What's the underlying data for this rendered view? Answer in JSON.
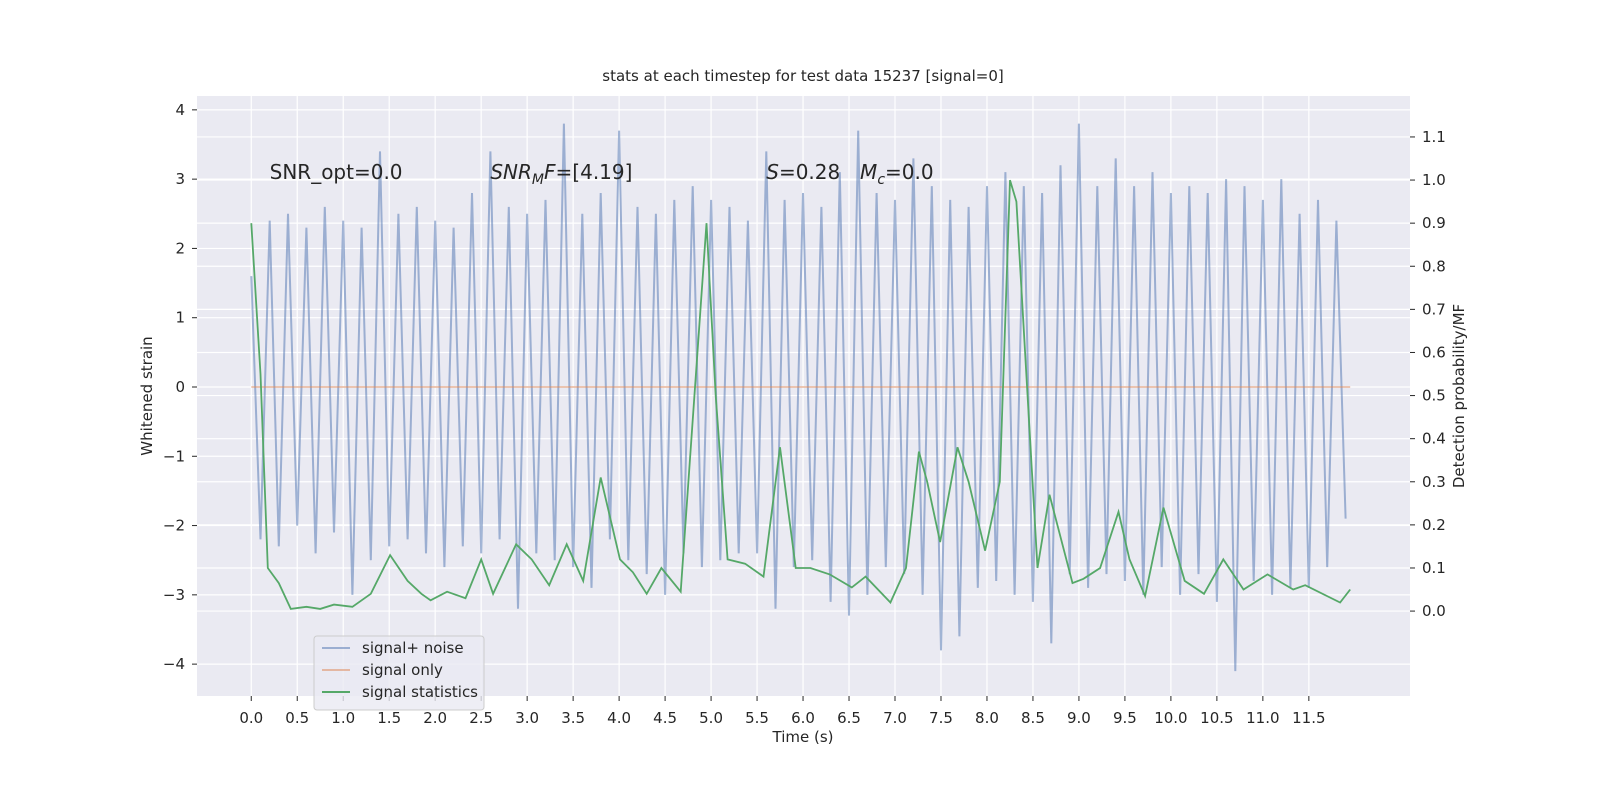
{
  "chart_data": {
    "type": "line",
    "title": "stats at each timestep for test data 15237 [signal=0]",
    "xlabel": "Time (s)",
    "ylabel": "Whitened strain",
    "y2label": "Detection probability/MF",
    "xlim": [
      -0.59,
      12.6
    ],
    "ylim": [
      -4.46,
      4.2
    ],
    "y2lim": [
      -0.197,
      1.195
    ],
    "xticks": [
      {
        "value": 0,
        "label": "0.0"
      },
      0.5,
      {
        "value": 1,
        "label": "1.0"
      },
      1.5,
      {
        "value": 2,
        "label": "2.0"
      },
      2.5,
      {
        "value": 3,
        "label": "3.0"
      },
      3.5,
      {
        "value": 4,
        "label": "4.0"
      },
      4.5,
      {
        "value": 5,
        "label": "5.0"
      },
      5.5,
      {
        "value": 6,
        "label": "6.0"
      },
      6.5,
      {
        "value": 7,
        "label": "7.0"
      },
      7.5,
      {
        "value": 8,
        "label": "8.0"
      },
      8.5,
      {
        "value": 9,
        "label": "9.0"
      },
      9.5,
      {
        "value": 10,
        "label": "10.0"
      },
      10.5,
      {
        "value": 11,
        "label": "11.0"
      },
      11.5
    ],
    "yticks": [
      {
        "value": -4,
        "label": "−4"
      },
      {
        "value": -3,
        "label": "−3"
      },
      {
        "value": -2,
        "label": "−2"
      },
      {
        "value": -1,
        "label": "−1"
      },
      0,
      1,
      2,
      3,
      4
    ],
    "y2ticks": [
      {
        "value": 0,
        "label": "0.0"
      },
      0.1,
      0.2,
      0.3,
      0.4,
      0.5,
      0.6,
      0.7,
      0.8,
      0.9,
      {
        "value": 1,
        "label": "1.0"
      },
      1.1
    ],
    "grid": true,
    "legend": "lower left",
    "annotations": [
      {
        "x": 0.2,
        "y": 3.0,
        "parts": [
          {
            "text": "SNR_opt=0.0",
            "style": "normal"
          }
        ]
      },
      {
        "x": 2.6,
        "y": 3.0,
        "parts": [
          {
            "text": "SNR",
            "style": "italic"
          },
          {
            "text": "M",
            "style": "italic-sub"
          },
          {
            "text": "F",
            "style": "italic"
          },
          {
            "text": "=[4.19]",
            "style": "normal"
          }
        ]
      },
      {
        "x": 5.6,
        "y": 3.0,
        "parts": [
          {
            "text": "S",
            "style": "italic"
          },
          {
            "text": "=0.28",
            "style": "normal"
          }
        ]
      },
      {
        "x": 6.62,
        "y": 3.0,
        "parts": [
          {
            "text": "M",
            "style": "italic"
          },
          {
            "text": "c",
            "style": "italic-sub"
          },
          {
            "text": "=0.0",
            "style": "normal"
          }
        ]
      }
    ],
    "series": [
      {
        "name": "signal+ noise",
        "color": "#4c72b0",
        "opacity": 0.5,
        "axis": "y",
        "x": [
          0.0,
          0.1,
          0.2,
          0.3,
          0.4,
          0.5,
          0.6,
          0.7,
          0.8,
          0.9,
          1.0,
          1.1,
          1.2,
          1.3,
          1.4,
          1.5,
          1.6,
          1.7,
          1.8,
          1.9,
          2.0,
          2.1,
          2.2,
          2.3,
          2.4,
          2.5,
          2.6,
          2.7,
          2.8,
          2.9,
          3.0,
          3.1,
          3.2,
          3.3,
          3.4,
          3.5,
          3.6,
          3.7,
          3.8,
          3.9,
          4.0,
          4.1,
          4.2,
          4.3,
          4.4,
          4.5,
          4.6,
          4.7,
          4.8,
          4.9,
          5.0,
          5.1,
          5.2,
          5.3,
          5.4,
          5.5,
          5.6,
          5.7,
          5.8,
          5.9,
          6.0,
          6.1,
          6.2,
          6.3,
          6.4,
          6.5,
          6.6,
          6.7,
          6.8,
          6.9,
          7.0,
          7.1,
          7.2,
          7.3,
          7.4,
          7.5,
          7.6,
          7.7,
          7.8,
          7.9,
          8.0,
          8.1,
          8.2,
          8.3,
          8.4,
          8.5,
          8.6,
          8.7,
          8.8,
          8.9,
          9.0,
          9.1,
          9.2,
          9.3,
          9.4,
          9.5,
          9.6,
          9.7,
          9.8,
          9.9,
          10.0,
          10.1,
          10.2,
          10.3,
          10.4,
          10.5,
          10.6,
          10.7,
          10.8,
          10.9,
          11.0,
          11.1,
          11.2,
          11.3,
          11.4,
          11.5,
          11.6,
          11.7,
          11.8,
          11.9
        ],
        "values": [
          1.6,
          -2.2,
          2.4,
          -2.3,
          2.5,
          -2.0,
          2.3,
          -2.4,
          2.6,
          -2.1,
          2.4,
          -3.0,
          2.3,
          -2.5,
          3.4,
          -2.3,
          2.5,
          -2.2,
          2.6,
          -2.4,
          2.4,
          -2.6,
          2.3,
          -2.3,
          2.8,
          -2.4,
          3.4,
          -2.2,
          2.6,
          -3.2,
          2.5,
          -2.4,
          2.7,
          -2.5,
          3.8,
          -2.6,
          2.5,
          -2.9,
          2.8,
          -2.2,
          3.7,
          -2.5,
          2.6,
          -2.7,
          2.5,
          -3.0,
          2.7,
          -2.4,
          2.9,
          -2.6,
          2.7,
          -2.5,
          2.6,
          -2.4,
          2.4,
          -2.4,
          3.4,
          -3.2,
          2.7,
          -2.6,
          2.8,
          -2.5,
          2.6,
          -3.1,
          3.1,
          -3.3,
          3.7,
          -3.0,
          2.8,
          -2.6,
          2.7,
          -2.7,
          3.3,
          -3.0,
          2.9,
          -3.8,
          2.7,
          -3.6,
          2.6,
          -2.9,
          2.9,
          -2.8,
          3.1,
          -3.0,
          2.9,
          -3.1,
          2.8,
          -3.7,
          3.2,
          -2.7,
          3.8,
          -2.9,
          2.9,
          -2.7,
          3.3,
          -2.8,
          2.9,
          -3.0,
          3.1,
          -2.6,
          2.8,
          -3.0,
          2.9,
          -2.7,
          2.8,
          -3.1,
          3.0,
          -4.1,
          2.9,
          -2.8,
          2.7,
          -3.0,
          3.0,
          -2.9,
          2.5,
          -2.9,
          2.7,
          -2.6,
          2.4,
          -1.9
        ]
      },
      {
        "name": "signal only",
        "color": "#dd8452",
        "opacity": 0.5,
        "axis": "y",
        "x": [
          0.0,
          11.95
        ],
        "values": [
          0,
          0
        ]
      },
      {
        "name": "signal statistics",
        "color": "#55a868",
        "opacity": 1,
        "axis": "y2",
        "x": [
          0.0,
          0.1,
          0.18,
          0.3,
          0.43,
          0.6,
          0.75,
          0.9,
          1.1,
          1.3,
          1.51,
          1.7,
          1.85,
          1.95,
          2.13,
          2.33,
          2.5,
          2.63,
          2.88,
          3.05,
          3.24,
          3.43,
          3.61,
          3.8,
          4.01,
          4.15,
          4.3,
          4.46,
          4.67,
          4.95,
          5.05,
          5.18,
          5.37,
          5.57,
          5.75,
          5.92,
          6.08,
          6.29,
          6.53,
          6.68,
          6.95,
          7.12,
          7.26,
          7.35,
          7.49,
          7.68,
          7.8,
          7.98,
          8.14,
          8.25,
          8.32,
          8.55,
          8.68,
          8.93,
          9.05,
          9.23,
          9.43,
          9.55,
          9.72,
          9.92,
          10.15,
          10.36,
          10.57,
          10.79,
          11.05,
          11.33,
          11.46,
          11.84,
          11.95
        ],
        "values": [
          0.9,
          0.55,
          0.1,
          0.065,
          0.005,
          0.01,
          0.005,
          0.015,
          0.01,
          0.04,
          0.13,
          0.07,
          0.04,
          0.025,
          0.045,
          0.03,
          0.12,
          0.04,
          0.155,
          0.12,
          0.06,
          0.155,
          0.07,
          0.31,
          0.12,
          0.09,
          0.04,
          0.1,
          0.045,
          0.9,
          0.5,
          0.12,
          0.11,
          0.08,
          0.38,
          0.1,
          0.1,
          0.085,
          0.055,
          0.08,
          0.02,
          0.1,
          0.37,
          0.3,
          0.16,
          0.38,
          0.3,
          0.14,
          0.3,
          1.0,
          0.95,
          0.1,
          0.27,
          0.065,
          0.075,
          0.1,
          0.23,
          0.12,
          0.035,
          0.24,
          0.07,
          0.04,
          0.12,
          0.05,
          0.085,
          0.05,
          0.06,
          0.02,
          0.05
        ]
      }
    ]
  }
}
